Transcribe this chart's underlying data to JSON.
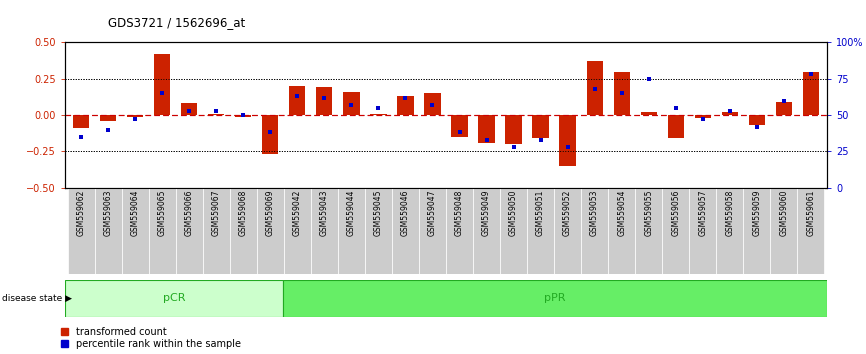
{
  "title": "GDS3721 / 1562696_at",
  "samples": [
    "GSM559062",
    "GSM559063",
    "GSM559064",
    "GSM559065",
    "GSM559066",
    "GSM559067",
    "GSM559068",
    "GSM559069",
    "GSM559042",
    "GSM559043",
    "GSM559044",
    "GSM559045",
    "GSM559046",
    "GSM559047",
    "GSM559048",
    "GSM559049",
    "GSM559050",
    "GSM559051",
    "GSM559052",
    "GSM559053",
    "GSM559054",
    "GSM559055",
    "GSM559056",
    "GSM559057",
    "GSM559058",
    "GSM559059",
    "GSM559060",
    "GSM559061"
  ],
  "transformed_count": [
    -0.09,
    -0.04,
    -0.01,
    0.42,
    0.08,
    0.01,
    -0.01,
    -0.27,
    0.2,
    0.19,
    0.16,
    0.01,
    0.13,
    0.15,
    -0.15,
    -0.19,
    -0.2,
    -0.16,
    -0.35,
    0.37,
    0.3,
    0.02,
    -0.16,
    -0.02,
    0.02,
    -0.07,
    0.09,
    0.3
  ],
  "percentile_rank": [
    35,
    40,
    47,
    65,
    53,
    53,
    50,
    38,
    63,
    62,
    57,
    55,
    62,
    57,
    38,
    33,
    28,
    33,
    28,
    68,
    65,
    75,
    55,
    47,
    53,
    42,
    60,
    78
  ],
  "pCR_count": 8,
  "pPR_count": 20,
  "bar_color": "#cc2200",
  "dot_color": "#0000cc",
  "background_color": "#ffffff",
  "ylim_left": [
    -0.5,
    0.5
  ],
  "ylim_right": [
    0,
    100
  ],
  "yticks_left": [
    -0.5,
    -0.25,
    0.0,
    0.25,
    0.5
  ],
  "yticks_right": [
    0,
    25,
    50,
    75,
    100
  ],
  "hline_color": "#cc0000",
  "dotted_color": "black",
  "pCR_facecolor": "#ccffcc",
  "pPR_facecolor": "#66ee66",
  "green_edge": "#22aa22",
  "label_color_left": "#cc2200",
  "label_color_right": "#0000cc",
  "tick_label_bg": "#cccccc"
}
